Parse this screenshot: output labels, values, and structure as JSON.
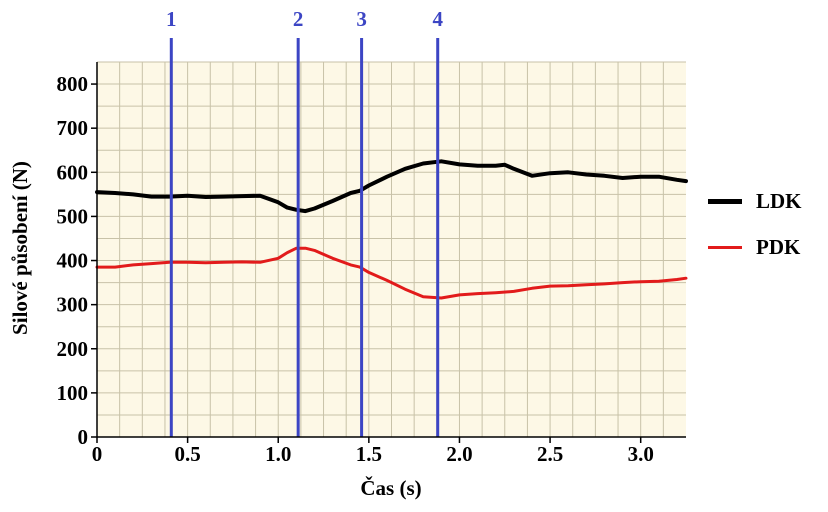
{
  "chart_data": {
    "type": "line",
    "xlabel": "Čas (s)",
    "ylabel": "Silové působení (N)",
    "xlim": [
      0,
      3.25
    ],
    "ylim": [
      0,
      850
    ],
    "xticks": [
      0,
      0.5,
      1.0,
      1.5,
      2.0,
      2.5,
      3.0
    ],
    "xtick_labels": [
      "0",
      "0.5",
      "1.0",
      "1.5",
      "2.0",
      "2.5",
      "3.0"
    ],
    "yticks": [
      0,
      100,
      200,
      300,
      400,
      500,
      600,
      700,
      800
    ],
    "ytick_labels": [
      "0",
      "100",
      "200",
      "300",
      "400",
      "500",
      "600",
      "700",
      "800"
    ],
    "grid": true,
    "background_color": "#fdf8e6",
    "grid_color": "#c8c2a8",
    "legend_position": "right",
    "markers": [
      {
        "label": "1",
        "x": 0.41,
        "color": "#3c45c4"
      },
      {
        "label": "2",
        "x": 1.11,
        "color": "#3c45c4"
      },
      {
        "label": "3",
        "x": 1.46,
        "color": "#3c45c4"
      },
      {
        "label": "4",
        "x": 1.88,
        "color": "#3c45c4"
      }
    ],
    "series": [
      {
        "name": "LDK",
        "color": "#000000",
        "x": [
          0,
          0.1,
          0.2,
          0.3,
          0.4,
          0.5,
          0.6,
          0.7,
          0.8,
          0.9,
          1.0,
          1.05,
          1.1,
          1.15,
          1.2,
          1.3,
          1.4,
          1.45,
          1.5,
          1.6,
          1.7,
          1.8,
          1.9,
          2.0,
          2.1,
          2.2,
          2.25,
          2.3,
          2.4,
          2.5,
          2.6,
          2.7,
          2.8,
          2.9,
          3.0,
          3.1,
          3.2,
          3.25
        ],
        "values": [
          555,
          553,
          550,
          545,
          545,
          547,
          544,
          545,
          546,
          547,
          532,
          520,
          515,
          512,
          518,
          535,
          553,
          558,
          570,
          590,
          608,
          620,
          625,
          618,
          615,
          615,
          617,
          608,
          592,
          598,
          600,
          595,
          592,
          587,
          590,
          590,
          583,
          580
        ]
      },
      {
        "name": "PDK",
        "color": "#e21b1b",
        "x": [
          0,
          0.1,
          0.2,
          0.3,
          0.4,
          0.5,
          0.6,
          0.7,
          0.8,
          0.9,
          1.0,
          1.05,
          1.1,
          1.15,
          1.2,
          1.3,
          1.4,
          1.45,
          1.5,
          1.6,
          1.7,
          1.8,
          1.9,
          2.0,
          2.1,
          2.2,
          2.3,
          2.4,
          2.5,
          2.6,
          2.7,
          2.8,
          2.9,
          3.0,
          3.1,
          3.2,
          3.25
        ],
        "values": [
          385,
          385,
          390,
          393,
          396,
          396,
          395,
          396,
          397,
          396,
          405,
          418,
          428,
          428,
          423,
          405,
          390,
          385,
          373,
          355,
          335,
          318,
          315,
          322,
          325,
          327,
          330,
          337,
          342,
          343,
          345,
          347,
          350,
          352,
          353,
          357,
          360
        ]
      }
    ]
  }
}
